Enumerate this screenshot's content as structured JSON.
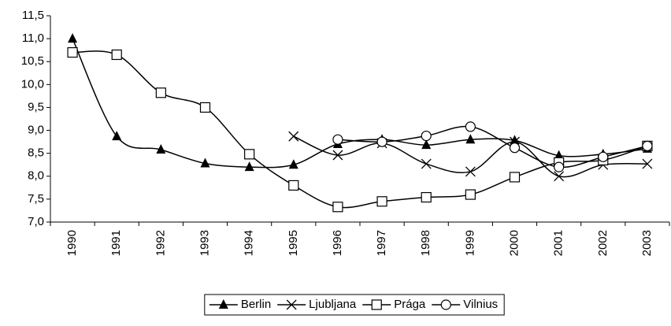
{
  "chart_data": {
    "type": "line",
    "categories": [
      "1990",
      "1991",
      "1992",
      "1993",
      "1994",
      "1995",
      "1996",
      "1997",
      "1998",
      "1999",
      "2000",
      "2001",
      "2002",
      "2003"
    ],
    "series": [
      {
        "name": "Berlin",
        "color": "#000000",
        "marker": "triangle",
        "values": [
          11.0,
          8.87,
          8.58,
          8.28,
          8.2,
          8.25,
          8.7,
          8.8,
          8.68,
          8.8,
          8.78,
          8.45,
          8.48,
          8.6
        ]
      },
      {
        "name": "Ljubljana",
        "color": "#000000",
        "marker": "cross",
        "values": [
          null,
          null,
          null,
          null,
          null,
          8.87,
          8.46,
          8.72,
          8.27,
          8.1,
          8.75,
          8.0,
          8.25,
          8.27
        ]
      },
      {
        "name": "Prága",
        "color": "#000000",
        "marker": "square",
        "values": [
          10.7,
          10.65,
          9.82,
          9.5,
          8.48,
          7.8,
          7.33,
          7.45,
          7.54,
          7.6,
          7.98,
          8.3,
          8.35,
          8.66
        ]
      },
      {
        "name": "Vilnius",
        "color": "#000000",
        "marker": "circle",
        "values": [
          null,
          null,
          null,
          null,
          null,
          null,
          8.8,
          8.75,
          8.88,
          9.08,
          8.62,
          8.2,
          8.42,
          8.66
        ]
      }
    ],
    "ylim": [
      7.0,
      11.5
    ],
    "yticks": [
      {
        "value": 7.0,
        "label": "7,0"
      },
      {
        "value": 7.5,
        "label": "7,5"
      },
      {
        "value": 8.0,
        "label": "8,0"
      },
      {
        "value": 8.5,
        "label": "8,5"
      },
      {
        "value": 9.0,
        "label": "9,0"
      },
      {
        "value": 9.5,
        "label": "9,5"
      },
      {
        "value": 10.0,
        "label": "10,0"
      },
      {
        "value": 10.5,
        "label": "10,5"
      },
      {
        "value": 11.0,
        "label": "11,0"
      },
      {
        "value": 11.5,
        "label": "11,5"
      }
    ],
    "grid": false,
    "legend": "bottom",
    "smooth": true
  }
}
